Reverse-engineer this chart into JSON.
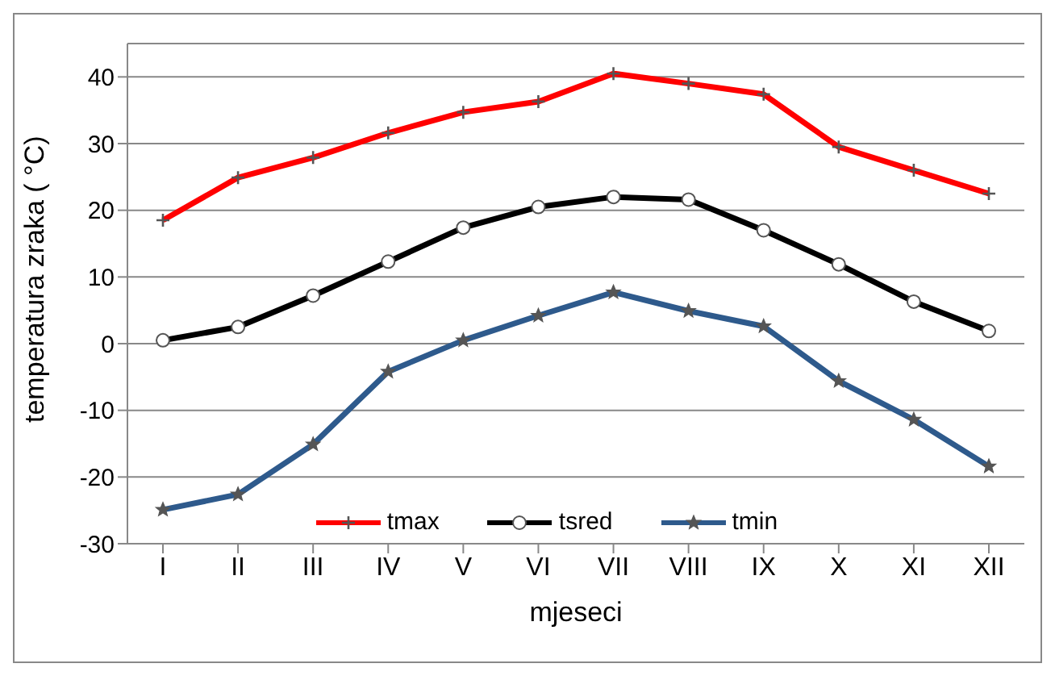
{
  "chart_data": {
    "type": "line",
    "xlabel": "mjeseci",
    "ylabel": "temperatura zraka ( °C)",
    "categories": [
      "I",
      "II",
      "III",
      "IV",
      "V",
      "VI",
      "VII",
      "VIII",
      "IX",
      "X",
      "XI",
      "XII"
    ],
    "series": [
      {
        "name": "tmax",
        "color": "#ff0000",
        "marker": "cross",
        "values": [
          18.5,
          24.9,
          27.9,
          31.6,
          34.7,
          36.3,
          40.5,
          39,
          37.4,
          29.5,
          26,
          22.5
        ]
      },
      {
        "name": "tsred",
        "color": "#000000",
        "marker": "circle",
        "values": [
          0.5,
          2.5,
          7.2,
          12.3,
          17.4,
          20.5,
          22,
          21.6,
          17,
          11.9,
          6.3,
          1.9
        ]
      },
      {
        "name": "tmin",
        "color": "#2e5a8c",
        "marker": "star",
        "values": [
          -24.9,
          -22.6,
          -15.1,
          -4.2,
          0.5,
          4.2,
          7.7,
          4.9,
          2.6,
          -5.6,
          -11.4,
          -18.4
        ]
      }
    ],
    "ylim": [
      -30,
      45
    ],
    "yticks": [
      -30,
      -20,
      -10,
      0,
      10,
      20,
      30,
      40
    ],
    "grid": "y",
    "legend": "bottom"
  }
}
